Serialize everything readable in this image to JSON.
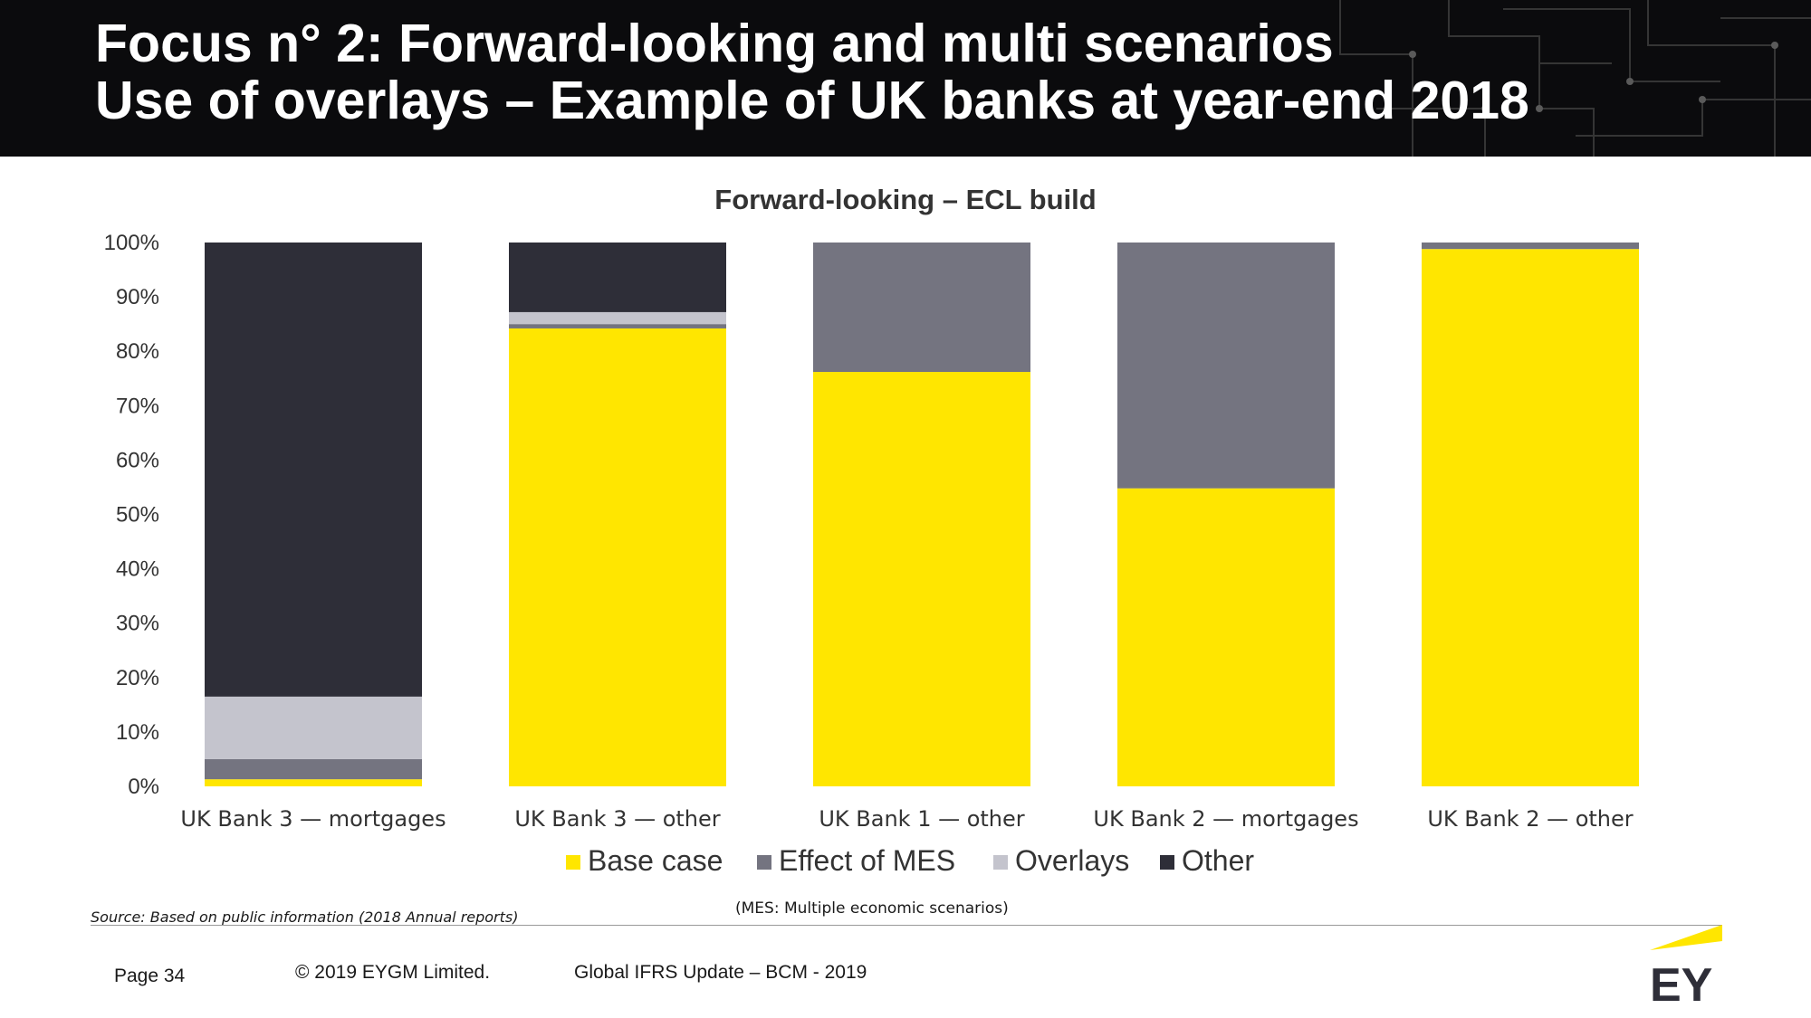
{
  "slide": {
    "title_line1": "Focus n° 2: Forward-looking and multi scenarios",
    "title_line2": "Use of overlays – Example of UK banks at year-end 2018"
  },
  "chart_data": {
    "type": "bar",
    "stacked": true,
    "percent_stacked": true,
    "title": "Forward-looking – ECL build",
    "xlabel": "",
    "ylabel": "",
    "ylim": [
      0,
      100
    ],
    "yticks": [
      "0%",
      "10%",
      "20%",
      "30%",
      "40%",
      "50%",
      "60%",
      "70%",
      "80%",
      "90%",
      "100%"
    ],
    "grid": false,
    "legend_position": "bottom",
    "categories": [
      "UK Bank 3 — mortgages",
      "UK Bank 3 — other",
      "UK Bank 1 — other",
      "UK Bank 2 — mortgages",
      "UK Bank 2 — other"
    ],
    "series": [
      {
        "name": "Base case",
        "color": "#FFE600",
        "values": [
          1.3,
          84.2,
          76.2,
          54.8,
          98.8
        ]
      },
      {
        "name": "Effect of MES",
        "color": "#747480",
        "values": [
          3.7,
          0.8,
          23.8,
          45.2,
          1.2
        ]
      },
      {
        "name": "Overlays",
        "color": "#C4C4CD",
        "values": [
          11.5,
          2.2,
          0,
          0,
          0
        ]
      },
      {
        "name": "Other",
        "color": "#2E2E38",
        "values": [
          83.5,
          12.8,
          0,
          0,
          0
        ]
      }
    ]
  },
  "notes": {
    "source": "Source: Based on public information (2018 Annual reports)",
    "mes": "(MES: Multiple economic scenarios)"
  },
  "footer": {
    "page": "Page 34",
    "copyright": "© 2019 EYGM Limited.",
    "title": "Global IFRS Update – BCM - 2019"
  },
  "logo": {
    "text": "EY"
  }
}
